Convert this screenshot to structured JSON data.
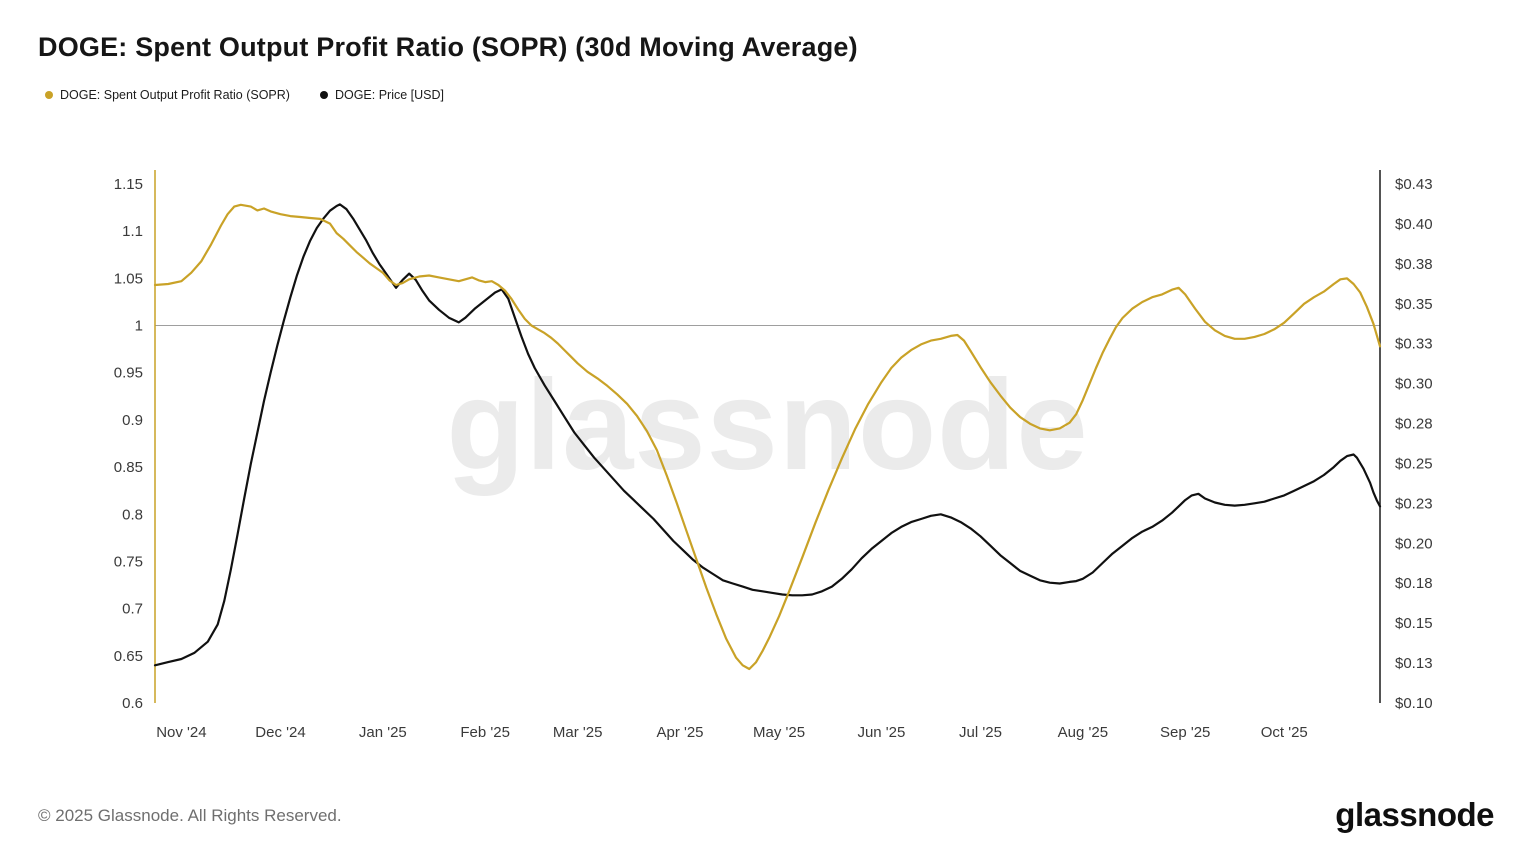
{
  "title": "DOGE: Spent Output Profit Ratio (SOPR) (30d Moving Average)",
  "legend": {
    "items": [
      {
        "label": "DOGE: Spent Output Profit Ratio (SOPR)",
        "color": "#c9a227"
      },
      {
        "label": "DOGE: Price [USD]",
        "color": "#111111"
      }
    ]
  },
  "watermark": "glassnode",
  "footer": {
    "copyright": "© 2025 Glassnode. All Rights Reserved.",
    "logo": "glassnode"
  },
  "chart_data": {
    "type": "line",
    "title": "DOGE: Spent Output Profit Ratio (SOPR) (30d Moving Average)",
    "x_unit": "days (0 = Nov 1 2024)",
    "x_domain_days": [
      -8,
      363
    ],
    "x_ticks": [
      {
        "day": 0,
        "label": "Nov '24"
      },
      {
        "day": 30,
        "label": "Dec '24"
      },
      {
        "day": 61,
        "label": "Jan '25"
      },
      {
        "day": 92,
        "label": "Feb '25"
      },
      {
        "day": 120,
        "label": "Mar '25"
      },
      {
        "day": 151,
        "label": "Apr '25"
      },
      {
        "day": 181,
        "label": "May '25"
      },
      {
        "day": 212,
        "label": "Jun '25"
      },
      {
        "day": 242,
        "label": "Jul '25"
      },
      {
        "day": 273,
        "label": "Aug '25"
      },
      {
        "day": 304,
        "label": "Sep '25"
      },
      {
        "day": 334,
        "label": "Oct '25"
      }
    ],
    "left_axis": {
      "min": 0.6,
      "max": 1.15,
      "baseline_value": 1,
      "color": "#c9a227",
      "tick_values": [
        1.15,
        1.1,
        1.05,
        1,
        0.95,
        0.9,
        0.85,
        0.8,
        0.75,
        0.7,
        0.65,
        0.6
      ],
      "tick_labels": [
        "1.15",
        "1.1",
        "1.05",
        "1",
        "0.95",
        "0.9",
        "0.85",
        "0.8",
        "0.75",
        "0.7",
        "0.65",
        "0.6"
      ]
    },
    "right_axis": {
      "min": 0.1,
      "max": 0.43,
      "color": "#1a1a1a",
      "tick_labels": [
        "$0.43",
        "$0.40",
        "$0.38",
        "$0.35",
        "$0.33",
        "$0.30",
        "$0.28",
        "$0.25",
        "$0.23",
        "$0.20",
        "$0.18",
        "$0.15",
        "$0.13",
        "$0.10"
      ]
    },
    "grid": "horizontal baseline at 1.0 only",
    "legend_position": "top-left",
    "series": [
      {
        "name": "DOGE: Spent Output Profit Ratio (SOPR)",
        "axis": "left",
        "color": "#c9a227",
        "points": [
          [
            -8,
            1.043
          ],
          [
            -4,
            1.044
          ],
          [
            0,
            1.047
          ],
          [
            3,
            1.056
          ],
          [
            6,
            1.068
          ],
          [
            9,
            1.086
          ],
          [
            12,
            1.106
          ],
          [
            14,
            1.118
          ],
          [
            16,
            1.126
          ],
          [
            18,
            1.128
          ],
          [
            21,
            1.126
          ],
          [
            23,
            1.122
          ],
          [
            25,
            1.124
          ],
          [
            27,
            1.121
          ],
          [
            30,
            1.118
          ],
          [
            33,
            1.116
          ],
          [
            36,
            1.115
          ],
          [
            39,
            1.114
          ],
          [
            42,
            1.113
          ],
          [
            45,
            1.108
          ],
          [
            47,
            1.098
          ],
          [
            49,
            1.092
          ],
          [
            51,
            1.085
          ],
          [
            53,
            1.078
          ],
          [
            55,
            1.072
          ],
          [
            57,
            1.066
          ],
          [
            59,
            1.061
          ],
          [
            61,
            1.056
          ],
          [
            63,
            1.048
          ],
          [
            65,
            1.043
          ],
          [
            67,
            1.045
          ],
          [
            69,
            1.049
          ],
          [
            72,
            1.052
          ],
          [
            75,
            1.053
          ],
          [
            78,
            1.051
          ],
          [
            81,
            1.049
          ],
          [
            84,
            1.047
          ],
          [
            86,
            1.049
          ],
          [
            88,
            1.051
          ],
          [
            90,
            1.048
          ],
          [
            92,
            1.046
          ],
          [
            94,
            1.047
          ],
          [
            96,
            1.043
          ],
          [
            98,
            1.037
          ],
          [
            100,
            1.028
          ],
          [
            102,
            1.017
          ],
          [
            104,
            1.007
          ],
          [
            106,
            1.0
          ],
          [
            108,
            0.996
          ],
          [
            110,
            0.992
          ],
          [
            112,
            0.987
          ],
          [
            114,
            0.981
          ],
          [
            116,
            0.974
          ],
          [
            118,
            0.967
          ],
          [
            120,
            0.96
          ],
          [
            123,
            0.951
          ],
          [
            126,
            0.944
          ],
          [
            129,
            0.936
          ],
          [
            132,
            0.927
          ],
          [
            135,
            0.917
          ],
          [
            138,
            0.904
          ],
          [
            141,
            0.888
          ],
          [
            144,
            0.868
          ],
          [
            147,
            0.841
          ],
          [
            150,
            0.812
          ],
          [
            153,
            0.782
          ],
          [
            156,
            0.752
          ],
          [
            159,
            0.722
          ],
          [
            162,
            0.694
          ],
          [
            165,
            0.668
          ],
          [
            168,
            0.648
          ],
          [
            170,
            0.64
          ],
          [
            172,
            0.636
          ],
          [
            174,
            0.643
          ],
          [
            176,
            0.655
          ],
          [
            178,
            0.669
          ],
          [
            181,
            0.692
          ],
          [
            184,
            0.718
          ],
          [
            188,
            0.754
          ],
          [
            192,
            0.791
          ],
          [
            196,
            0.826
          ],
          [
            200,
            0.859
          ],
          [
            204,
            0.89
          ],
          [
            208,
            0.917
          ],
          [
            212,
            0.94
          ],
          [
            215,
            0.955
          ],
          [
            218,
            0.966
          ],
          [
            221,
            0.974
          ],
          [
            224,
            0.98
          ],
          [
            227,
            0.984
          ],
          [
            230,
            0.986
          ],
          [
            233,
            0.989
          ],
          [
            235,
            0.99
          ],
          [
            237,
            0.984
          ],
          [
            239,
            0.973
          ],
          [
            242,
            0.956
          ],
          [
            245,
            0.94
          ],
          [
            248,
            0.926
          ],
          [
            251,
            0.913
          ],
          [
            254,
            0.903
          ],
          [
            257,
            0.896
          ],
          [
            260,
            0.891
          ],
          [
            263,
            0.889
          ],
          [
            266,
            0.891
          ],
          [
            269,
            0.897
          ],
          [
            271,
            0.906
          ],
          [
            273,
            0.921
          ],
          [
            275,
            0.938
          ],
          [
            277,
            0.955
          ],
          [
            279,
            0.971
          ],
          [
            281,
            0.985
          ],
          [
            283,
            0.998
          ],
          [
            285,
            1.008
          ],
          [
            288,
            1.018
          ],
          [
            291,
            1.025
          ],
          [
            294,
            1.03
          ],
          [
            297,
            1.033
          ],
          [
            300,
            1.038
          ],
          [
            302,
            1.04
          ],
          [
            304,
            1.033
          ],
          [
            307,
            1.018
          ],
          [
            310,
            1.004
          ],
          [
            313,
            0.995
          ],
          [
            316,
            0.989
          ],
          [
            319,
            0.986
          ],
          [
            322,
            0.986
          ],
          [
            325,
            0.988
          ],
          [
            328,
            0.991
          ],
          [
            331,
            0.996
          ],
          [
            334,
            1.003
          ],
          [
            337,
            1.013
          ],
          [
            340,
            1.023
          ],
          [
            343,
            1.03
          ],
          [
            346,
            1.036
          ],
          [
            349,
            1.044
          ],
          [
            351,
            1.049
          ],
          [
            353,
            1.05
          ],
          [
            355,
            1.044
          ],
          [
            357,
            1.035
          ],
          [
            359,
            1.02
          ],
          [
            361,
            1.002
          ],
          [
            362,
            0.99
          ],
          [
            363,
            0.978
          ]
        ]
      },
      {
        "name": "DOGE: Price [USD]",
        "axis": "right",
        "color": "#111111",
        "points": [
          [
            -8,
            0.124
          ],
          [
            -4,
            0.126
          ],
          [
            0,
            0.128
          ],
          [
            4,
            0.132
          ],
          [
            8,
            0.139
          ],
          [
            11,
            0.15
          ],
          [
            13,
            0.165
          ],
          [
            15,
            0.185
          ],
          [
            17,
            0.207
          ],
          [
            19,
            0.23
          ],
          [
            21,
            0.252
          ],
          [
            23,
            0.272
          ],
          [
            25,
            0.292
          ],
          [
            27,
            0.31
          ],
          [
            29,
            0.327
          ],
          [
            31,
            0.343
          ],
          [
            33,
            0.358
          ],
          [
            35,
            0.372
          ],
          [
            37,
            0.384
          ],
          [
            39,
            0.394
          ],
          [
            41,
            0.402
          ],
          [
            43,
            0.408
          ],
          [
            45,
            0.413
          ],
          [
            47,
            0.416
          ],
          [
            48,
            0.417
          ],
          [
            50,
            0.414
          ],
          [
            52,
            0.408
          ],
          [
            54,
            0.401
          ],
          [
            56,
            0.394
          ],
          [
            58,
            0.386
          ],
          [
            60,
            0.379
          ],
          [
            61,
            0.376
          ],
          [
            63,
            0.37
          ],
          [
            65,
            0.364
          ],
          [
            67,
            0.369
          ],
          [
            69,
            0.373
          ],
          [
            71,
            0.369
          ],
          [
            73,
            0.362
          ],
          [
            75,
            0.356
          ],
          [
            78,
            0.35
          ],
          [
            81,
            0.345
          ],
          [
            84,
            0.342
          ],
          [
            86,
            0.345
          ],
          [
            89,
            0.351
          ],
          [
            92,
            0.356
          ],
          [
            95,
            0.361
          ],
          [
            97,
            0.363
          ],
          [
            99,
            0.357
          ],
          [
            101,
            0.345
          ],
          [
            103,
            0.333
          ],
          [
            105,
            0.322
          ],
          [
            107,
            0.313
          ],
          [
            110,
            0.302
          ],
          [
            113,
            0.292
          ],
          [
            116,
            0.282
          ],
          [
            119,
            0.272
          ],
          [
            122,
            0.264
          ],
          [
            125,
            0.256
          ],
          [
            128,
            0.249
          ],
          [
            131,
            0.242
          ],
          [
            134,
            0.235
          ],
          [
            137,
            0.229
          ],
          [
            140,
            0.223
          ],
          [
            143,
            0.217
          ],
          [
            146,
            0.21
          ],
          [
            149,
            0.203
          ],
          [
            152,
            0.197
          ],
          [
            155,
            0.191
          ],
          [
            158,
            0.186
          ],
          [
            161,
            0.182
          ],
          [
            164,
            0.178
          ],
          [
            167,
            0.176
          ],
          [
            170,
            0.174
          ],
          [
            173,
            0.172
          ],
          [
            176,
            0.171
          ],
          [
            179,
            0.17
          ],
          [
            182,
            0.169
          ],
          [
            185,
            0.1685
          ],
          [
            188,
            0.1685
          ],
          [
            191,
            0.169
          ],
          [
            194,
            0.171
          ],
          [
            197,
            0.174
          ],
          [
            200,
            0.179
          ],
          [
            203,
            0.185
          ],
          [
            206,
            0.192
          ],
          [
            209,
            0.198
          ],
          [
            212,
            0.203
          ],
          [
            215,
            0.208
          ],
          [
            218,
            0.212
          ],
          [
            221,
            0.215
          ],
          [
            224,
            0.217
          ],
          [
            227,
            0.219
          ],
          [
            230,
            0.22
          ],
          [
            233,
            0.218
          ],
          [
            236,
            0.215
          ],
          [
            239,
            0.211
          ],
          [
            242,
            0.206
          ],
          [
            245,
            0.2
          ],
          [
            248,
            0.194
          ],
          [
            251,
            0.189
          ],
          [
            254,
            0.184
          ],
          [
            257,
            0.181
          ],
          [
            260,
            0.178
          ],
          [
            263,
            0.1765
          ],
          [
            266,
            0.176
          ],
          [
            269,
            0.177
          ],
          [
            271,
            0.1775
          ],
          [
            273,
            0.179
          ],
          [
            276,
            0.183
          ],
          [
            279,
            0.189
          ],
          [
            282,
            0.195
          ],
          [
            285,
            0.2
          ],
          [
            288,
            0.205
          ],
          [
            291,
            0.209
          ],
          [
            294,
            0.212
          ],
          [
            297,
            0.216
          ],
          [
            300,
            0.221
          ],
          [
            302,
            0.225
          ],
          [
            304,
            0.229
          ],
          [
            306,
            0.232
          ],
          [
            308,
            0.233
          ],
          [
            310,
            0.23
          ],
          [
            313,
            0.2275
          ],
          [
            316,
            0.226
          ],
          [
            319,
            0.2255
          ],
          [
            322,
            0.226
          ],
          [
            325,
            0.227
          ],
          [
            328,
            0.228
          ],
          [
            331,
            0.23
          ],
          [
            334,
            0.232
          ],
          [
            337,
            0.235
          ],
          [
            340,
            0.238
          ],
          [
            343,
            0.241
          ],
          [
            346,
            0.245
          ],
          [
            349,
            0.25
          ],
          [
            351,
            0.254
          ],
          [
            353,
            0.257
          ],
          [
            355,
            0.258
          ],
          [
            356,
            0.256
          ],
          [
            358,
            0.249
          ],
          [
            360,
            0.24
          ],
          [
            361,
            0.234
          ],
          [
            362,
            0.229
          ],
          [
            363,
            0.225
          ]
        ]
      }
    ]
  }
}
